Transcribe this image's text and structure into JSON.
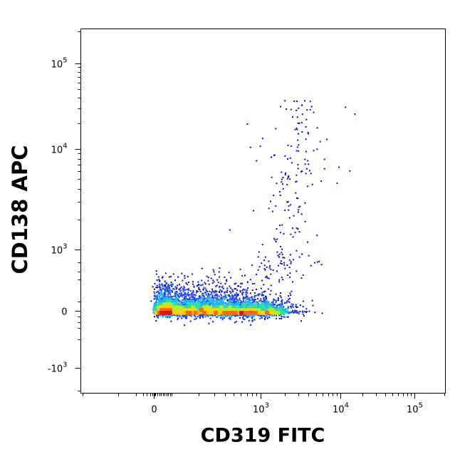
{
  "chart_data": {
    "type": "scatter",
    "subtype": "flow-cytometry-density-dot-plot",
    "xlabel": "CD319 FITC",
    "ylabel": "CD138 APC",
    "x_scale": "biexponential",
    "y_scale": "biexponential",
    "xlim": [
      -2000,
      200000
    ],
    "ylim": [
      -1500,
      200000
    ],
    "x_ticks": [
      {
        "value": 0,
        "label": "0"
      },
      {
        "value": 1000,
        "label": "10",
        "exp": "3"
      },
      {
        "value": 10000,
        "label": "10",
        "exp": "4"
      },
      {
        "value": 100000,
        "label": "10",
        "exp": "5"
      }
    ],
    "y_ticks": [
      {
        "value": -1000,
        "label": "-10",
        "exp": "3"
      },
      {
        "value": 0,
        "label": "0"
      },
      {
        "value": 1000,
        "label": "10",
        "exp": "3"
      },
      {
        "value": 10000,
        "label": "10",
        "exp": "4"
      },
      {
        "value": 100000,
        "label": "10",
        "exp": "5"
      }
    ],
    "populations": [
      {
        "x": 160,
        "y": 10,
        "events": 5200,
        "x_spread": 0.62,
        "y_spread": 0.56,
        "density_peak": "high"
      },
      {
        "x": 800,
        "y": 0,
        "events": 2200,
        "x_spread": 0.4,
        "y_spread": 0.5,
        "density_peak": "medium"
      },
      {
        "x": 2000,
        "y": 3000,
        "events": 210,
        "x_spread": 0.65,
        "y_spread": 1.0,
        "density_peak": "low"
      }
    ],
    "color_scale": [
      "#0a0ad4",
      "#1e4cf5",
      "#19b9ef",
      "#29e2a0",
      "#b4ee24",
      "#ffd200",
      "#ff6a00",
      "#e41010"
    ],
    "grid": false,
    "legend": "none"
  }
}
